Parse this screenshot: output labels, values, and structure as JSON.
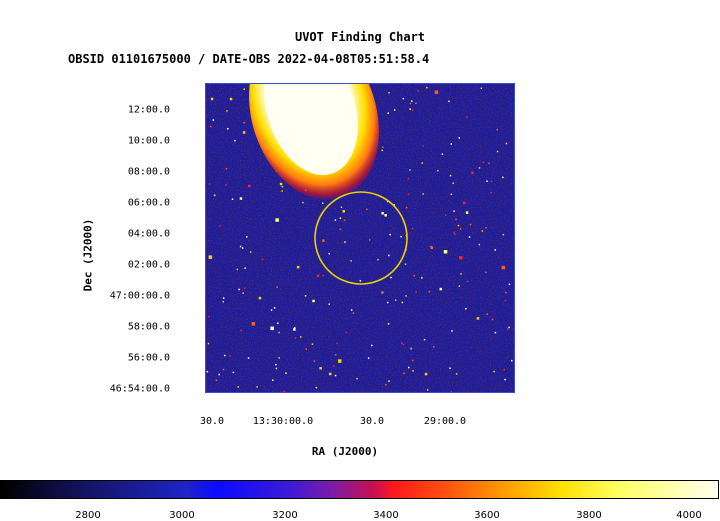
{
  "title": "UVOT Finding Chart",
  "subtitle": "OBSID 01101675000 / DATE-OBS 2022-04-08T05:51:58.4",
  "axes": {
    "xlabel": "RA (J2000)",
    "ylabel": "Dec (J2000)",
    "y_ticks": [
      "12:00.0",
      "10:00.0",
      "08:00.0",
      "06:00.0",
      "04:00.0",
      "02:00.0",
      "47:00:00.0",
      "58:00.0",
      "56:00.0",
      "46:54:00.0"
    ],
    "x_ticks": [
      "30.0",
      "13:30:00.0",
      "30.0",
      "29:00.0"
    ]
  },
  "colorbar": {
    "ticks": [
      "2800",
      "3000",
      "3200",
      "3400",
      "3600",
      "3800",
      "4000"
    ]
  },
  "colors": {
    "background_field": "#1a1aa0",
    "circle": "#e8d200",
    "frame": "#3a4bd6"
  }
}
